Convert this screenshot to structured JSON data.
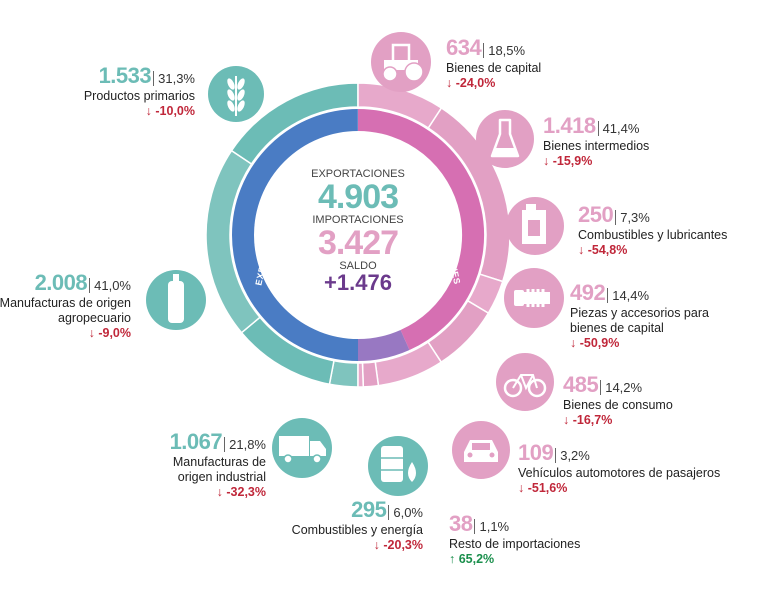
{
  "center": {
    "exports_label": "EXPORTACIONES",
    "exports_value": "4.903",
    "imports_label": "IMPORTACIONES",
    "imports_value": "3.427",
    "balance_label": "SALDO",
    "balance_value": "+1.476",
    "ring_left_label": "EXPORTACIONES",
    "ring_right_label": "IMPORTACIONES"
  },
  "exports": [
    {
      "value": "1.533",
      "share": "31,3%",
      "label": "Productos primarios",
      "change": "↓ -10,0%",
      "icon": "wheat-icon"
    },
    {
      "value": "2.008",
      "share": "41,0%",
      "label": "Manufacturas de origen agropecuario",
      "change": "↓ -9,0%",
      "icon": "bottle-icon"
    },
    {
      "value": "1.067",
      "share": "21,8%",
      "label": "Manufacturas de origen industrial",
      "change": "↓ -32,3%",
      "icon": "truck-icon"
    },
    {
      "value": "295",
      "share": "6,0%",
      "label": "Combustibles y energía",
      "change": "↓ -20,3%",
      "icon": "barrel-drop-icon"
    }
  ],
  "imports": [
    {
      "value": "634",
      "share": "18,5%",
      "label": "Bienes de capital",
      "change": "↓ -24,0%",
      "icon": "tractor-icon"
    },
    {
      "value": "1.418",
      "share": "41,4%",
      "label": "Bienes intermedios",
      "change": "↓ -15,9%",
      "icon": "flask-icon"
    },
    {
      "value": "250",
      "share": "7,3%",
      "label": "Combustibles y lubricantes",
      "change": "↓ -54,8%",
      "icon": "jerrycan-icon"
    },
    {
      "value": "492",
      "share": "14,4%",
      "label": "Piezas y accesorios para bienes de capital",
      "change": "↓ -50,9%",
      "icon": "gear-part-icon"
    },
    {
      "value": "485",
      "share": "14,2%",
      "label": "Bienes de consumo",
      "change": "↓ -16,7%",
      "icon": "bicycle-icon"
    },
    {
      "value": "109",
      "share": "3,2%",
      "label": "Vehículos automotores de pasajeros",
      "change": "↓ -51,6%",
      "icon": "car-icon"
    },
    {
      "value": "38",
      "share": "1,1%",
      "label": "Resto de importaciones",
      "change": "↑ 65,2%",
      "icon": ""
    }
  ],
  "colors": {
    "teal": "#6cbcb6",
    "teal_light": "#9fd1cd",
    "pink": "#e2a0c4",
    "pink_light": "#eec3da",
    "blue": "#4a7cc4",
    "magenta": "#d66fb2",
    "purple": "#6b3a8c",
    "down": "#c0273a",
    "up": "#1a8f4c"
  }
}
